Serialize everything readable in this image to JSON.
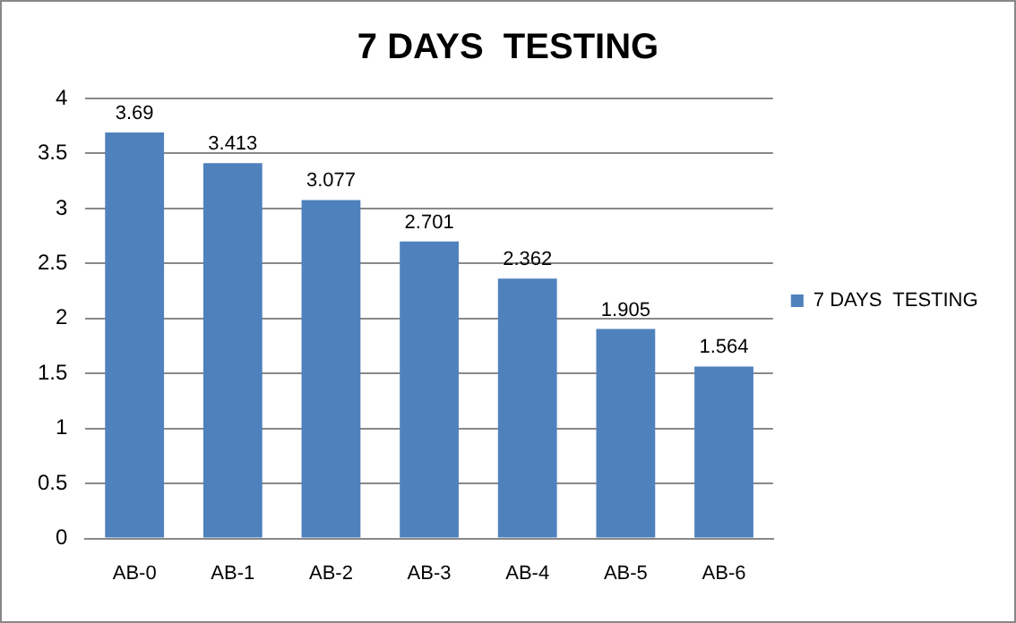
{
  "chart_data": {
    "type": "bar",
    "title": "7 DAYS  TESTING",
    "categories": [
      "AB-0",
      "AB-1",
      "AB-2",
      "AB-3",
      "AB-4",
      "AB-5",
      "AB-6"
    ],
    "series": [
      {
        "name": "7 DAYS  TESTING",
        "color": "#4f81bd",
        "values": [
          3.69,
          3.413,
          3.077,
          2.701,
          2.362,
          1.905,
          1.564
        ]
      }
    ],
    "ylim": [
      0,
      4
    ],
    "yticks": [
      0,
      0.5,
      1,
      1.5,
      2,
      2.5,
      3,
      3.5,
      4
    ],
    "grid": "y",
    "legend": "right",
    "data_labels": true
  }
}
